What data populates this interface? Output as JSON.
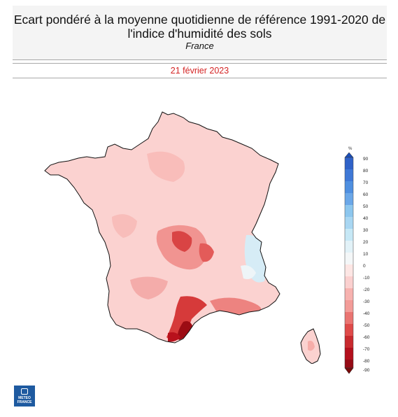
{
  "header": {
    "title_line1": "Ecart pondéré à la moyenne quotidienne de référence 1991-2020 de",
    "title_line2": "l'indice d'humidité des sols",
    "region": "France",
    "date": "21 février 2023"
  },
  "legend": {
    "unit": "%",
    "ticks": [
      "90",
      "80",
      "70",
      "60",
      "50",
      "40",
      "30",
      "20",
      "10",
      "0",
      "-10",
      "-20",
      "-30",
      "-40",
      "-50",
      "-60",
      "-70",
      "-80",
      "-90"
    ],
    "colors": {
      "wet_extreme": "#1c4fb8",
      "wet_strong": "#4f8fe0",
      "wet_moderate": "#8cc6ee",
      "wet_light": "#c6e8f6",
      "neutral": "#f4f7f8",
      "dry_light": "#fbd0cf",
      "dry_moderate": "#f39c98",
      "dry_strong": "#df4a49",
      "dry_severe": "#b4101d",
      "dry_extreme": "#7a0a0a"
    }
  },
  "map": {
    "overall_anomaly_class": "-10 to -20",
    "regions": [
      {
        "name": "mainland",
        "class": "-10 to -20"
      },
      {
        "name": "massif-central",
        "class": "-30 to -50"
      },
      {
        "name": "alps",
        "class": "0 to 10"
      },
      {
        "name": "languedoc",
        "class": "-50 to -80"
      },
      {
        "name": "corsica",
        "class": "-10 to -20"
      }
    ]
  },
  "logo": {
    "line1": "METEO",
    "line2": "FRANCE"
  }
}
